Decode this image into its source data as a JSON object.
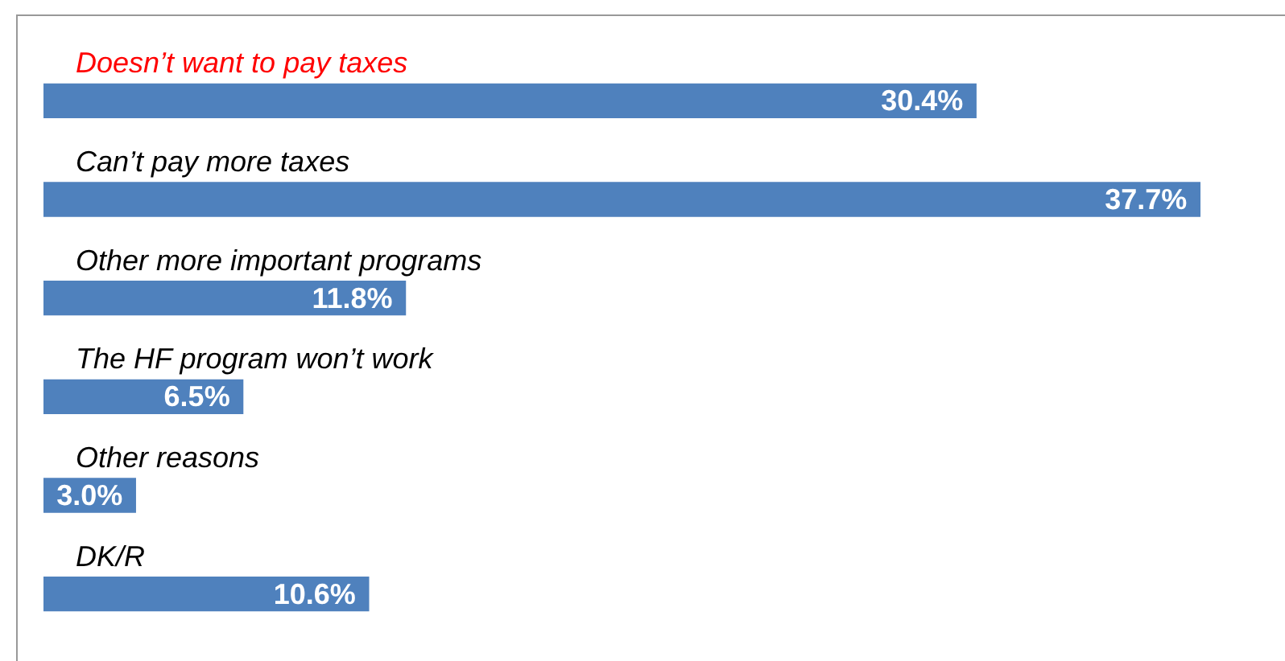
{
  "chart_data": {
    "type": "bar",
    "orientation": "horizontal",
    "categories": [
      "Doesn’t want to pay taxes",
      "Can’t pay more taxes",
      "Other more important programs",
      "The HF program won’t work",
      "Other reasons",
      "DK/R"
    ],
    "values": [
      30.4,
      37.7,
      11.8,
      6.5,
      3.0,
      10.6
    ],
    "color": "#4f81bd",
    "data_labels": true,
    "value_labels": [
      "30.4%",
      "37.7%",
      "11.8%",
      "6.5%",
      "3.0%",
      "10.6%"
    ]
  }
}
